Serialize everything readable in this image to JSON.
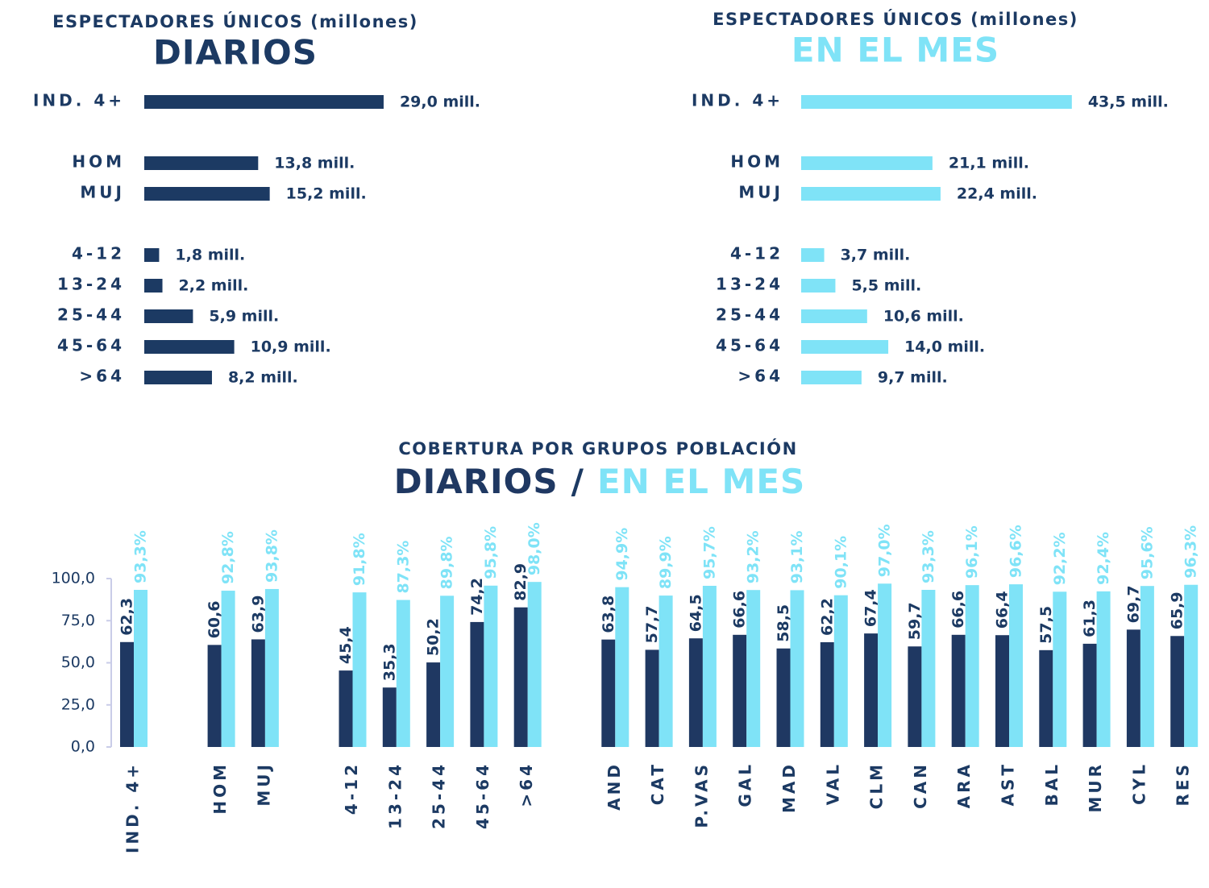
{
  "chart_data": [
    {
      "type": "barh",
      "title": "ESPECTADORES ÚNICOS (millones)",
      "subtitle": "DIARIOS",
      "color": "#1c3a63",
      "categories": [
        "IND. 4+",
        "HOM",
        "MUJ",
        "4-12",
        "13-24",
        "25-44",
        "45-64",
        ">64"
      ],
      "values": [
        29.0,
        13.8,
        15.2,
        1.8,
        2.2,
        5.9,
        10.9,
        8.2
      ],
      "value_labels": [
        "29,0 mill.",
        "13,8 mill.",
        "15,2 mill.",
        "1,8 mill.",
        "2,2 mill.",
        "5,9 mill.",
        "10,9 mill.",
        "8,2 mill."
      ]
    },
    {
      "type": "barh",
      "title": "ESPECTADORES ÚNICOS (millones)",
      "subtitle": "EN EL MES",
      "color": "#7fe3f7",
      "categories": [
        "IND. 4+",
        "HOM",
        "MUJ",
        "4-12",
        "13-24",
        "25-44",
        "45-64",
        ">64"
      ],
      "values": [
        43.5,
        21.1,
        22.4,
        3.7,
        5.5,
        10.6,
        14.0,
        9.7
      ],
      "value_labels": [
        "43,5 mill.",
        "21,1 mill.",
        "22,4 mill.",
        "3,7 mill.",
        "5,5 mill.",
        "10,6 mill.",
        "14,0 mill.",
        "9,7 mill."
      ]
    },
    {
      "type": "bar",
      "title": "COBERTURA POR GRUPOS POBLACIÓN",
      "subtitle_separator": "/",
      "categories": [
        "IND. 4+",
        "HOM",
        "MUJ",
        "4-12",
        "13-24",
        "25-44",
        "45-64",
        ">64",
        "AND",
        "CAT",
        "P.VAS",
        "GAL",
        "MAD",
        "VAL",
        "CLM",
        "CAN",
        "ARA",
        "AST",
        "BAL",
        "MUR",
        "CYL",
        "RES"
      ],
      "ylim": [
        0,
        100
      ],
      "yticks": [
        {
          "value": 0,
          "label": "0,0"
        },
        {
          "value": 25,
          "label": "25,0"
        },
        {
          "value": 50,
          "label": "50,0"
        },
        {
          "value": 75,
          "label": "75,0"
        },
        {
          "value": 100,
          "label": "100,0"
        }
      ],
      "series": [
        {
          "name": "DIARIOS",
          "color": "#1f3862",
          "values": [
            62.3,
            60.6,
            63.9,
            45.4,
            35.3,
            50.2,
            74.2,
            82.9,
            63.8,
            57.7,
            64.5,
            66.6,
            58.5,
            62.2,
            67.4,
            59.7,
            66.6,
            66.4,
            57.5,
            61.3,
            69.7,
            65.9
          ],
          "value_labels": [
            "62,3",
            "60,6",
            "63,9",
            "45,4",
            "35,3",
            "50,2",
            "74,2",
            "82,9",
            "63,8",
            "57,7",
            "64,5",
            "66,6",
            "58,5",
            "62,2",
            "67,4",
            "59,7",
            "66,6",
            "66,4",
            "57,5",
            "61,3",
            "69,7",
            "65,9"
          ]
        },
        {
          "name": "EN EL MES",
          "color": "#7fe3f7",
          "values": [
            93.3,
            92.8,
            93.8,
            91.8,
            87.3,
            89.8,
            95.8,
            98.0,
            94.9,
            89.9,
            95.7,
            93.2,
            93.1,
            90.1,
            97.0,
            93.3,
            96.1,
            96.6,
            92.2,
            92.4,
            95.6,
            96.3
          ],
          "value_labels": [
            "93,3%",
            "92,8%",
            "93,8%",
            "91,8%",
            "87,3%",
            "89,8%",
            "95,8%",
            "98,0%",
            "94,9%",
            "89,9%",
            "95,7%",
            "93,2%",
            "93,1%",
            "90,1%",
            "97,0%",
            "93,3%",
            "96,1%",
            "96,6%",
            "92,2%",
            "92,4%",
            "95,6%",
            "96,3%"
          ]
        }
      ]
    }
  ]
}
